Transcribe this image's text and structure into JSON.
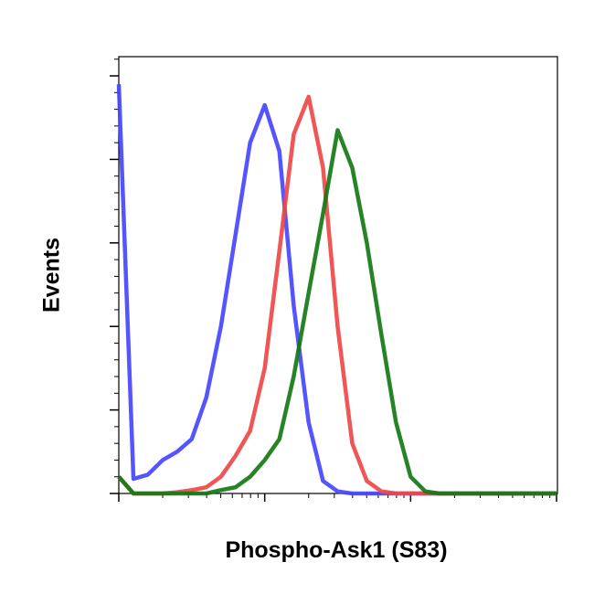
{
  "chart_data": {
    "type": "line",
    "xlabel": "Phospho-Ask1 (S83)",
    "ylabel": "Events",
    "log_x": true,
    "xlim": [
      1,
      1000
    ],
    "xticks": [
      1,
      10,
      100,
      1000
    ],
    "ylim": [
      0,
      104.6
    ],
    "yticks": [
      0,
      20,
      40,
      60,
      80,
      100
    ],
    "x": [
      1,
      1.26,
      1.58,
      2,
      2.51,
      3.16,
      3.98,
      5.01,
      6.31,
      7.94,
      10,
      12.6,
      15.8,
      20,
      25.1,
      31.6,
      39.8,
      50.1,
      63.1,
      79.4,
      100,
      126,
      158,
      200,
      251,
      316,
      398,
      501,
      631,
      794,
      1000
    ],
    "series": [
      {
        "color": "#4646ff",
        "values": [
          98,
          3.5,
          4.5,
          8,
          10,
          13,
          23,
          40,
          62,
          84,
          93,
          82,
          45,
          17,
          3,
          0.5,
          0,
          0,
          0,
          0,
          0,
          0,
          0,
          0,
          0,
          0,
          0,
          0,
          0,
          0,
          0
        ]
      },
      {
        "color": "#f04848",
        "values": [
          4,
          0,
          0,
          0,
          0.3,
          0.8,
          1.5,
          4,
          9,
          15,
          30,
          58,
          86,
          95,
          78,
          40,
          12,
          3,
          0.5,
          0,
          0,
          0,
          0,
          0,
          0,
          0,
          0,
          0,
          0,
          0,
          0
        ]
      },
      {
        "color": "#137a13",
        "values": [
          4,
          0,
          0,
          0,
          0,
          0,
          0,
          0.8,
          1.5,
          4,
          8,
          13,
          28,
          48,
          67,
          87,
          78,
          60,
          38,
          17,
          4,
          0.5,
          0,
          0,
          0,
          0,
          0,
          0,
          0,
          0,
          0
        ]
      }
    ]
  }
}
